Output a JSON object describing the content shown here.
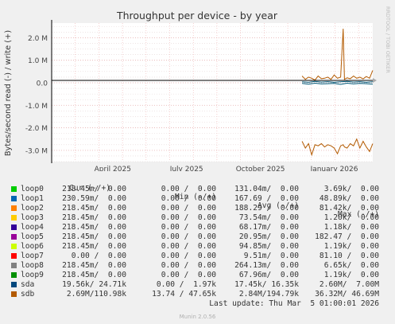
{
  "chart_data": {
    "type": "line",
    "title": "Throughput per device - by year",
    "ylabel": "Bytes/second read (-) / write (+)",
    "side_label": "RRDTOOL / TOBI OETIKER",
    "y_ticks": [
      "2.0 M",
      "1.0 M",
      "0.0",
      "-1.0 M",
      "-2.0 M",
      "-3.0 M"
    ],
    "y_tick_values": [
      2000000,
      1000000,
      0,
      -1000000,
      -2000000,
      -3000000
    ],
    "ylim": [
      -3500000,
      2650000
    ],
    "x_ticks": [
      "April 2025",
      "July 2025",
      "October 2025",
      "January 2026"
    ],
    "series": [
      {
        "name": "sdb",
        "color": "#b35a00",
        "x": [
          0.78,
          0.79,
          0.8,
          0.81,
          0.82,
          0.83,
          0.84,
          0.85,
          0.86,
          0.87,
          0.88,
          0.89,
          0.9,
          0.908,
          0.912,
          0.92,
          0.93,
          0.94,
          0.95,
          0.96,
          0.97,
          0.98,
          0.99,
          1.0
        ],
        "write": [
          300000,
          150000,
          250000,
          200000,
          120000,
          300000,
          180000,
          200000,
          250000,
          150000,
          350000,
          200000,
          250000,
          2400000,
          150000,
          220000,
          180000,
          300000,
          200000,
          250000,
          170000,
          280000,
          200000,
          550000
        ],
        "read": [
          -2600000,
          -2900000,
          -2700000,
          -3200000,
          -2750000,
          -2800000,
          -2700000,
          -2850000,
          -2750000,
          -2800000,
          -2900000,
          -3150000,
          -2800000,
          -2750000,
          -2850000,
          -2900000,
          -2700000,
          -2800000,
          -2500000,
          -2900000,
          -2600000,
          -2850000,
          -3050000,
          -2700000
        ]
      },
      {
        "name": "sda",
        "color": "#005a7a",
        "x": [
          0.78,
          0.8,
          0.82,
          0.84,
          0.86,
          0.88,
          0.9,
          0.92,
          0.94,
          0.96,
          0.98,
          1.0
        ],
        "write": [
          40000,
          20000,
          60000,
          30000,
          50000,
          20000,
          40000,
          60000,
          30000,
          50000,
          20000,
          40000
        ],
        "read": [
          -30000,
          -60000,
          -20000,
          -50000,
          -40000,
          -30000,
          -70000,
          -20000,
          -50000,
          -30000,
          -40000,
          -60000
        ]
      }
    ],
    "grid": true
  },
  "legend": {
    "headers": {
      "cur": "Cur (-/+)",
      "min": "Min (-/+)",
      "avg": "Avg (-/+)",
      "max": "Max (-/+)"
    },
    "rows": [
      {
        "name": "loop0",
        "color": "#00cc00",
        "cur": "218.45m/  0.00",
        "min": "0.00 /  0.00",
        "avg": "131.04m/  0.00",
        "max": "3.69k/  0.00"
      },
      {
        "name": "loop1",
        "color": "#0066b3",
        "cur": "230.59m/  0.00",
        "min": "0.00 /  0.00",
        "avg": "167.69 /  0.00",
        "max": "48.89k/  0.00"
      },
      {
        "name": "loop2",
        "color": "#ff8000",
        "cur": "218.45m/  0.00",
        "min": "0.00 /  0.00",
        "avg": "188.29 /  0.00",
        "max": "81.42k/  0.00"
      },
      {
        "name": "loop3",
        "color": "#ffcc00",
        "cur": "218.45m/  0.00",
        "min": "0.00 /  0.00",
        "avg": "73.54m/  0.00",
        "max": "1.20k/  0.00"
      },
      {
        "name": "loop4",
        "color": "#330099",
        "cur": "218.45m/  0.00",
        "min": "0.00 /  0.00",
        "avg": "68.17m/  0.00",
        "max": "1.18k/  0.00"
      },
      {
        "name": "loop5",
        "color": "#990099",
        "cur": "218.45m/  0.00",
        "min": "0.00 /  0.00",
        "avg": "20.95m/  0.00",
        "max": "182.47 /  0.00"
      },
      {
        "name": "loop6",
        "color": "#ccff00",
        "cur": "218.45m/  0.00",
        "min": "0.00 /  0.00",
        "avg": "94.85m/  0.00",
        "max": "1.19k/  0.00"
      },
      {
        "name": "loop7",
        "color": "#ff0000",
        "cur": "0.00 /  0.00",
        "min": "0.00 /  0.00",
        "avg": "9.51m/  0.00",
        "max": "81.10 /  0.00"
      },
      {
        "name": "loop8",
        "color": "#808080",
        "cur": "218.45m/  0.00",
        "min": "0.00 /  0.00",
        "avg": "264.13m/  0.00",
        "max": "6.65k/  0.00"
      },
      {
        "name": "loop9",
        "color": "#008f00",
        "cur": "218.45m/  0.00",
        "min": "0.00 /  0.00",
        "avg": "67.96m/  0.00",
        "max": "1.19k/  0.00"
      },
      {
        "name": "sda",
        "color": "#00487d",
        "cur": "19.56k/ 24.71k",
        "min": "0.00 /  1.97k",
        "avg": "17.45k/ 16.35k",
        "max": "2.60M/  7.00M"
      },
      {
        "name": "sdb",
        "color": "#b35a00",
        "cur": "2.69M/110.98k",
        "min": "13.74 / 47.65k",
        "avg": "2.84M/194.79k",
        "max": "36.32M/ 46.69M"
      }
    ],
    "last_update": "Last update: Thu Mar  5 01:00:01 2026"
  },
  "footer": "Munin 2.0.56"
}
